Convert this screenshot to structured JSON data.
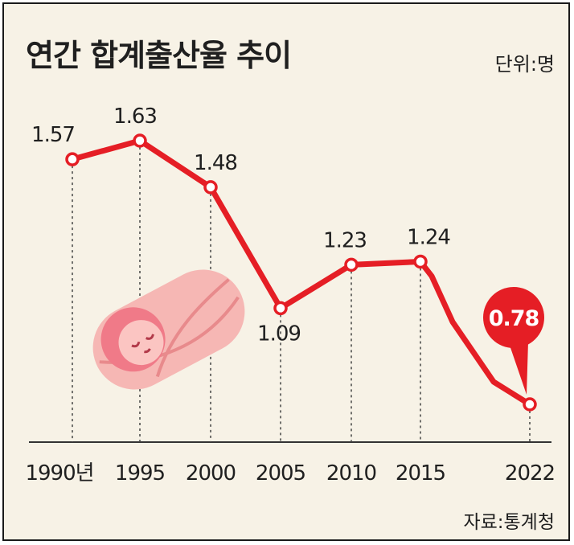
{
  "header": {
    "title": "연간 합계출산율 추이",
    "unit": "단위:명"
  },
  "footer": {
    "source": "자료:통계청"
  },
  "colors": {
    "background": "#f7f2e6",
    "line": "#e51e25",
    "marker_fill": "#ffffff",
    "callout": "#e51e25",
    "baby_skin": "#f07a88",
    "baby_wrap": "#f6b7b4"
  },
  "illustration": "swaddled-baby-icon",
  "chart_data": {
    "type": "line",
    "title": "연간 합계출산율 추이",
    "unit": "단위:명",
    "categories": [
      "1990년",
      "1995",
      "2000",
      "2005",
      "2010",
      "2015",
      "2022"
    ],
    "x": [
      1990,
      1995,
      2000,
      2005,
      2010,
      2015,
      2022
    ],
    "values": [
      1.57,
      1.63,
      1.48,
      1.09,
      1.23,
      1.24,
      0.78
    ],
    "value_labels": [
      "1.57",
      "1.63",
      "1.48",
      "1.09",
      "1.23",
      "1.24",
      "0.78"
    ],
    "highlight_index": 6,
    "ylim": [
      0.75,
      1.65
    ],
    "grid": "vertical dotted drop lines",
    "source": "자료:통계청"
  }
}
